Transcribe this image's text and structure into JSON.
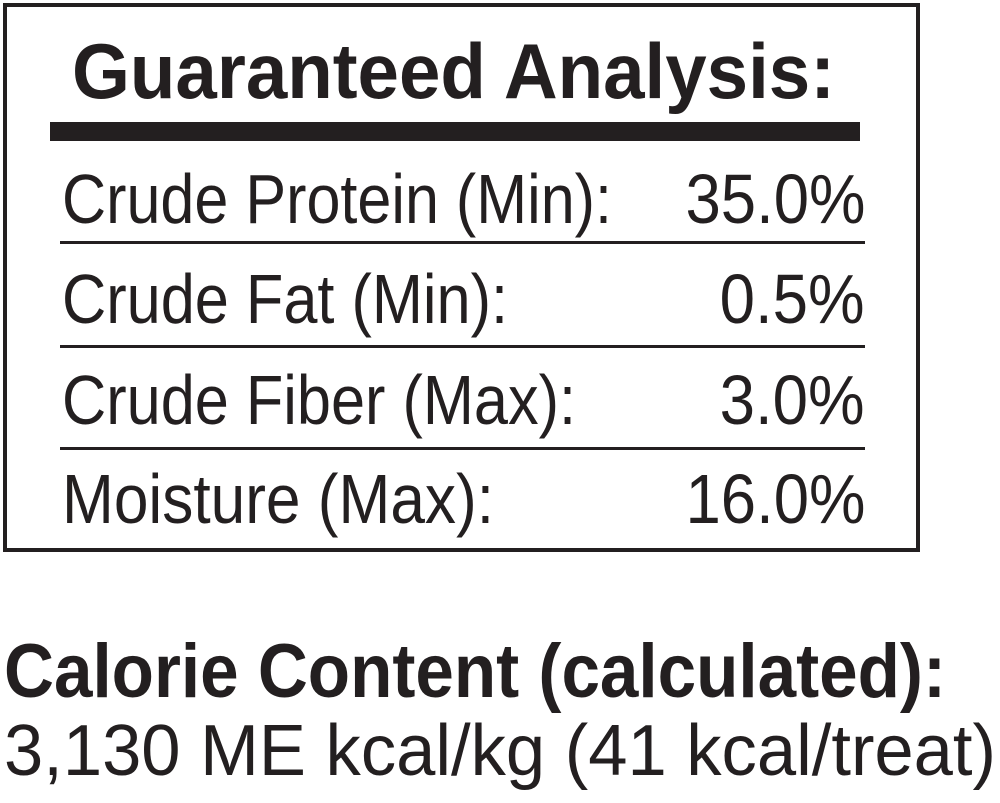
{
  "analysis": {
    "title": "Guaranteed Analysis:",
    "rows": [
      {
        "label": "Crude Protein (Min):",
        "value": "35.0%"
      },
      {
        "label": "Crude Fat (Min):",
        "value": "0.5%"
      },
      {
        "label": "Crude Fiber (Max):",
        "value": "3.0%"
      },
      {
        "label": "Moisture (Max):",
        "value": "16.0%"
      }
    ]
  },
  "calorie": {
    "title": "Calorie Content (calculated):",
    "value": "3,130 ME kcal/kg (41 kcal/treat)"
  },
  "colors": {
    "ink": "#231f20",
    "background": "#ffffff"
  }
}
